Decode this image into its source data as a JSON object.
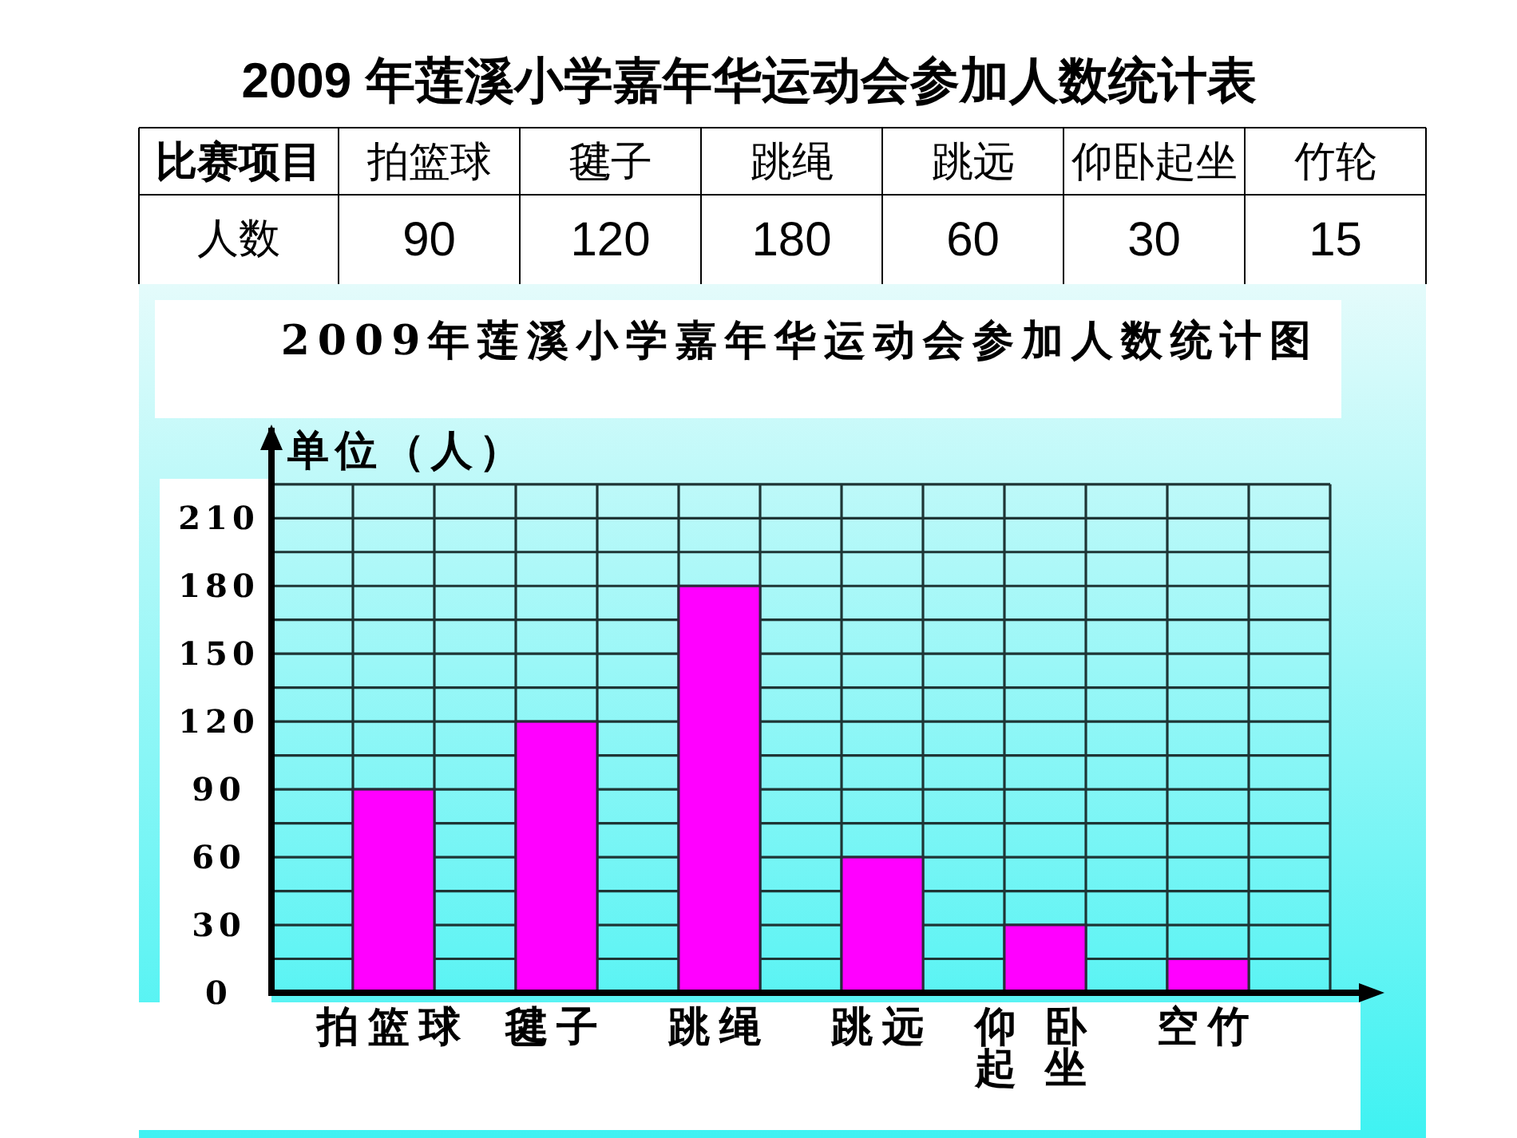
{
  "chart_data": [
    {
      "type": "other",
      "title": "2009 年莲溪小学嘉年华运动会参加人数统计表",
      "xlabel": "比赛项目",
      "ylabel": "人数",
      "categories": [
        "拍篮球",
        "毽子",
        "跳绳",
        "跳远",
        "仰卧起坐",
        "竹轮"
      ],
      "values": [
        90,
        120,
        180,
        60,
        30,
        15
      ],
      "data_labels": true
    },
    {
      "type": "bar",
      "title": "2009年莲溪小学嘉年华运动会参加人数统计图",
      "ylabel": "单位（人）",
      "categories": [
        "拍篮球",
        "毽子",
        "跳绳",
        "跳远",
        "仰卧起坐",
        "空竹"
      ],
      "values": [
        90,
        120,
        180,
        60,
        30,
        15
      ],
      "color": "#ff00ff",
      "ylim": [
        0,
        250
      ],
      "yticks": [
        0,
        {
          "value": 15,
          "label": null
        },
        30,
        {
          "value": 45,
          "label": null
        },
        60,
        {
          "value": 75,
          "label": null
        },
        90,
        {
          "value": 105,
          "label": null
        },
        120,
        {
          "value": 135,
          "label": null
        },
        150,
        {
          "value": 165,
          "label": null
        },
        180,
        {
          "value": 195,
          "label": null
        },
        210,
        {
          "value": 225,
          "label": null
        }
      ],
      "grid": true
    }
  ]
}
